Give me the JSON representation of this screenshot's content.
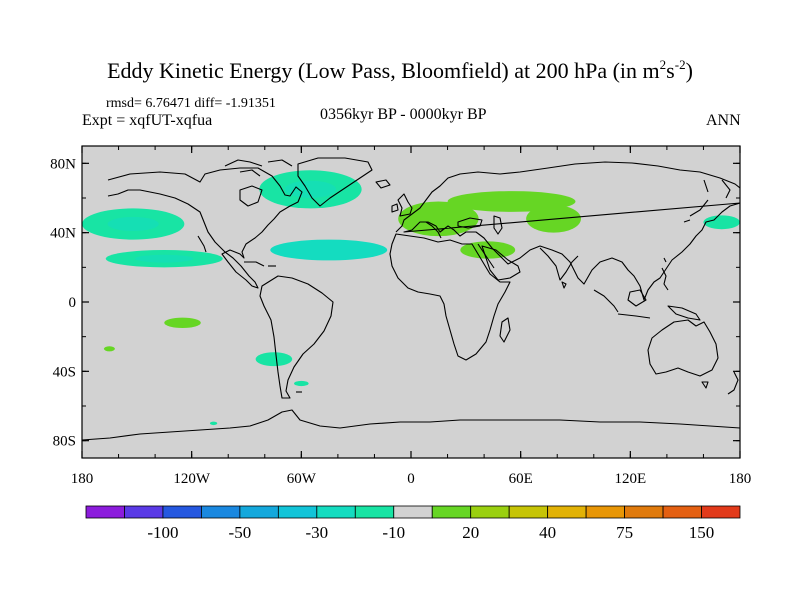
{
  "chart_data": {
    "type": "heatmap",
    "title_main": "Eddy Kinetic Energy (Low Pass, Bloomfield) at 200 hPa (in m",
    "title_sup1": "2",
    "title_mid": "s",
    "title_sup2": "-2",
    "title_end": ")",
    "stats": "rmsd= 6.76471 diff= -1.91351",
    "left_label": "Expt = xqfUT-xqfua",
    "center_label": "0356kyr BP - 0000kyr BP",
    "right_label": "ANN",
    "x_ticks": [
      "180",
      "120W",
      "60W",
      "0",
      "60E",
      "120E",
      "180"
    ],
    "x_values": [
      -180,
      -120,
      -60,
      0,
      60,
      120,
      180
    ],
    "y_ticks": [
      "80N",
      "40N",
      "0",
      "40S",
      "80S"
    ],
    "y_values": [
      80,
      40,
      0,
      -40,
      -80
    ],
    "xlim": [
      -180,
      180
    ],
    "ylim": [
      -90,
      90
    ],
    "colorbar_labels": [
      "-100",
      "-50",
      "-30",
      "-10",
      "20",
      "40",
      "75",
      "150"
    ],
    "colorbar_colors": [
      "#8c1cdc",
      "#5a3ae6",
      "#2558e0",
      "#1a88e0",
      "#14a8dc",
      "#12c4d8",
      "#14dcc0",
      "#18e4a4",
      "#d2d2d2",
      "#66d624",
      "#9ad010",
      "#c6c406",
      "#e2b206",
      "#e89606",
      "#e07a0c",
      "#e46012",
      "#e23a1a"
    ],
    "land_color": "#d2d2d2",
    "anomalies": [
      {
        "lon": -152,
        "lat": 45,
        "rx": 28,
        "ry": 9,
        "value": -15
      },
      {
        "lon": -135,
        "lat": 25,
        "rx": 32,
        "ry": 5,
        "value": -15
      },
      {
        "lon": -55,
        "lat": 65,
        "rx": 28,
        "ry": 11,
        "value": -15
      },
      {
        "lon": -45,
        "lat": 30,
        "rx": 32,
        "ry": 6,
        "value": -20
      },
      {
        "lon": 15,
        "lat": 48,
        "rx": 22,
        "ry": 10,
        "value": 22
      },
      {
        "lon": 55,
        "lat": 58,
        "rx": 35,
        "ry": 6,
        "value": 22
      },
      {
        "lon": 78,
        "lat": 48,
        "rx": 15,
        "ry": 8,
        "value": 22
      },
      {
        "lon": 42,
        "lat": 30,
        "rx": 15,
        "ry": 5,
        "value": 22
      },
      {
        "lon": -125,
        "lat": -12,
        "rx": 10,
        "ry": 3,
        "value": 22
      },
      {
        "lon": -165,
        "lat": -27,
        "rx": 3,
        "ry": 1.5,
        "value": 22
      },
      {
        "lon": -75,
        "lat": -33,
        "rx": 10,
        "ry": 4,
        "value": -15
      },
      {
        "lon": -60,
        "lat": -47,
        "rx": 4,
        "ry": 1.5,
        "value": -15
      },
      {
        "lon": -108,
        "lat": -70,
        "rx": 2,
        "ry": 1,
        "value": -15
      },
      {
        "lon": 170,
        "lat": 46,
        "rx": 10,
        "ry": 4,
        "value": -15
      }
    ]
  }
}
